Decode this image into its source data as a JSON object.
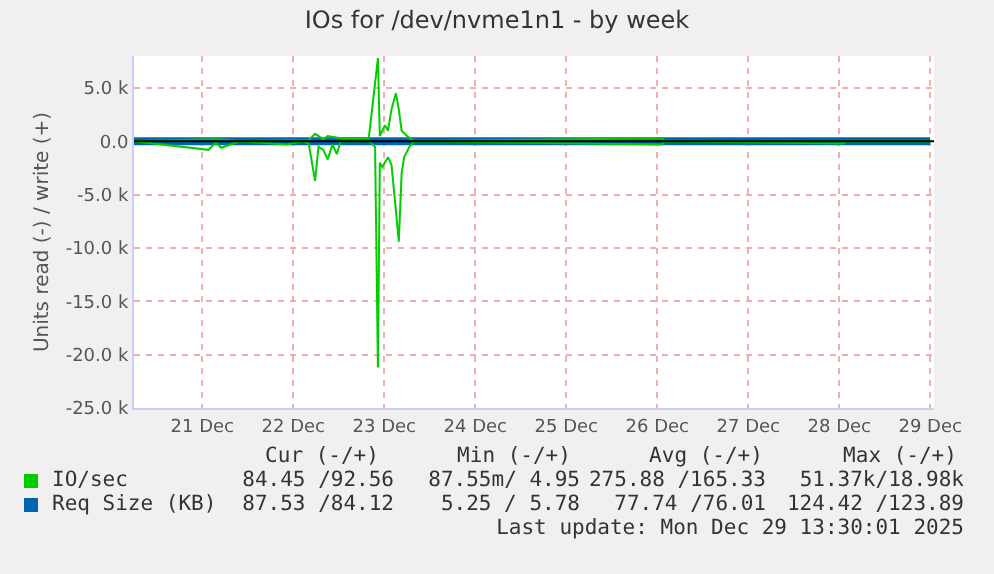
{
  "chart_data": {
    "type": "line",
    "title": "IOs for /dev/nvme1n1 - by week",
    "ylabel": "Units read (-) / write (+)",
    "xlim": [
      "2025-12-20T06:00",
      "2025-12-29T01:00"
    ],
    "xticks": [
      {
        "value": "2025-12-21",
        "label": "21 Dec"
      },
      {
        "value": "2025-12-22",
        "label": "22 Dec"
      },
      {
        "value": "2025-12-23",
        "label": "23 Dec"
      },
      {
        "value": "2025-12-24",
        "label": "24 Dec"
      },
      {
        "value": "2025-12-25",
        "label": "25 Dec"
      },
      {
        "value": "2025-12-26",
        "label": "26 Dec"
      },
      {
        "value": "2025-12-27",
        "label": "27 Dec"
      },
      {
        "value": "2025-12-28",
        "label": "28 Dec"
      },
      {
        "value": "2025-12-29",
        "label": "29 Dec"
      }
    ],
    "ylim": [
      -25000,
      8000
    ],
    "yticks": [
      {
        "value": -25000,
        "label": "-25.0 k"
      },
      {
        "value": -20000,
        "label": "-20.0 k"
      },
      {
        "value": -15000,
        "label": "-15.0 k"
      },
      {
        "value": -10000,
        "label": "-10.0 k"
      },
      {
        "value": -5000,
        "label": "-5.0 k"
      },
      {
        "value": 0,
        "label": "0.0"
      },
      {
        "value": 5000,
        "label": "5.0 k"
      }
    ],
    "grid": true,
    "legend": "bottom",
    "marker": "none",
    "line_style": "solid",
    "ref_lines": [
      {
        "axis": "y",
        "value": 0,
        "color": "#000000"
      }
    ],
    "series": [
      {
        "name": "Req Size (KB)",
        "color": "#0066b3",
        "x": [
          "2025-12-20T06:00",
          "2025-12-29T00:00"
        ],
        "values": [
          0,
          0
        ]
      },
      {
        "name": "IO/sec",
        "color": "#00cc00",
        "x": [
          "2025-12-20T06:00",
          "2025-12-21T03:35",
          "2025-12-21T07:25",
          "2025-12-21T10:00",
          "2025-12-22T04:05",
          "2025-12-22T05:45",
          "2025-12-22T07:55",
          "2025-12-22T09:05",
          "2025-12-22T12:30",
          "2025-12-22T19:55",
          "2025-12-22T22:20",
          "2025-12-22T22:50",
          "2025-12-23T00:10",
          "2025-12-23T01:00",
          "2025-12-23T01:55",
          "2025-12-23T03:05",
          "2025-12-23T03:50",
          "2025-12-23T04:35",
          "2025-12-23T06:00",
          "2025-12-23T07:55",
          "2025-12-26T01:00",
          "2025-12-26T02:00",
          "2025-12-29T00:00"
        ],
        "values": [
          0,
          200,
          100,
          0,
          100,
          700,
          200,
          500,
          300,
          300,
          7800,
          500,
          1500,
          1000,
          3000,
          4500,
          3000,
          1000,
          500,
          0,
          300,
          0,
          0
        ]
      },
      {
        "color": "#00cc00",
        "x": [
          "2025-12-20T06:00",
          "2025-12-21T01:40",
          "2025-12-21T03:35",
          "2025-12-21T05:00",
          "2025-12-21T07:25",
          "2025-12-21T10:00",
          "2025-12-21T22:20",
          "2025-12-22T02:25",
          "2025-12-22T04:05",
          "2025-12-22T05:45",
          "2025-12-22T06:40",
          "2025-12-22T07:55",
          "2025-12-22T09:05",
          "2025-12-22T10:20",
          "2025-12-22T11:30",
          "2025-12-22T12:30",
          "2025-12-22T19:55",
          "2025-12-22T21:35",
          "2025-12-22T22:20",
          "2025-12-22T22:50",
          "2025-12-22T23:30",
          "2025-12-23T01:00",
          "2025-12-23T01:55",
          "2025-12-23T03:05",
          "2025-12-23T03:50",
          "2025-12-23T04:35",
          "2025-12-23T05:15",
          "2025-12-23T06:40",
          "2025-12-23T07:55",
          "2025-12-26T01:00",
          "2025-12-26T02:00",
          "2025-12-28T01:00",
          "2025-12-28T02:00",
          "2025-12-29T00:00"
        ],
        "values": [
          0,
          -800,
          -100,
          -600,
          -300,
          0,
          -300,
          0,
          -200,
          -3700,
          -500,
          -800,
          -1700,
          -300,
          -1200,
          0,
          0,
          -500,
          -21200,
          -2000,
          -2400,
          -1500,
          -2200,
          -6500,
          -9400,
          -3000,
          -1500,
          -500,
          0,
          -300,
          0,
          -200,
          0,
          0
        ]
      }
    ],
    "annotations": [
      "Cur (-/+)",
      "Min (-/+)",
      "Avg (-/+)",
      "Max (-/+)",
      "84.45 /92.56",
      "87.55m/ 4.95",
      "275.88 /165.33",
      "51.37k/18.98k",
      "87.53 /84.12",
      "5.25 / 5.78",
      "77.74 /76.01",
      "124.42 /123.89",
      "Last update: Mon Dec 29 13:30:01 2025"
    ]
  }
}
